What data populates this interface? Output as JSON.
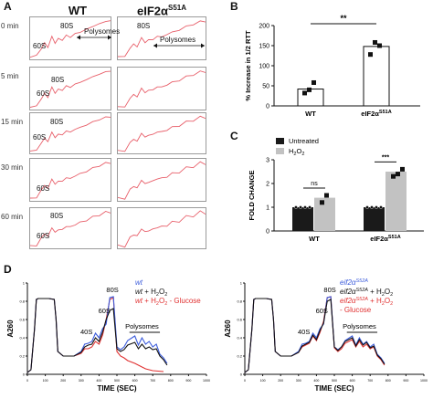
{
  "panel_a": {
    "letter": "A",
    "col_wt": "WT",
    "col_mut_main": "eIF2α",
    "col_mut_sup": "S51A",
    "times": [
      "0 min",
      "5 min",
      "15 min",
      "30 min",
      "60 min"
    ],
    "label_60s": "60S",
    "label_80s": "80S",
    "label_polysomes": "Polysomes",
    "trace_color": "#e8606b"
  },
  "panel_b": {
    "letter": "B",
    "sig": "**",
    "chart_data": {
      "type": "bar",
      "categories": [
        "WT",
        "eIF2αS51A"
      ],
      "category_main": [
        "WT",
        "eIF2α"
      ],
      "category_sup": [
        "",
        "S51A"
      ],
      "values": [
        42,
        148
      ],
      "points": [
        [
          32,
          40,
          58
        ],
        [
          128,
          158,
          150
        ]
      ],
      "ylabel": "% Increase in 1/2 RTT",
      "ylim": [
        0,
        200
      ],
      "yticks": [
        0,
        50,
        100,
        150,
        200
      ]
    }
  },
  "panel_c": {
    "letter": "C",
    "chart_data": {
      "type": "bar",
      "categories": [
        "WT",
        "eIF2αS51A"
      ],
      "category_main": [
        "WT",
        "eIF2α"
      ],
      "category_sup": [
        "",
        "S51A"
      ],
      "series": [
        {
          "name": "Untreated",
          "values": [
            1.0,
            1.0
          ],
          "color": "#1a1a1a"
        },
        {
          "name": "H2O2",
          "name_main": "H",
          "name_sub1": "2",
          "name_mid": "O",
          "name_sub2": "2",
          "values": [
            1.4,
            2.5
          ],
          "color": "#c2c2c2"
        }
      ],
      "points_h2o2": [
        [
          1.2,
          1.5
        ],
        [
          2.3,
          2.4,
          2.6
        ]
      ],
      "sig": [
        "ns",
        "***"
      ],
      "ylabel": "FOLD CHANGE",
      "ylim": [
        0,
        3
      ],
      "yticks": [
        0,
        1,
        2,
        3
      ]
    }
  },
  "panel_d": {
    "letter": "D",
    "chart_data": [
      {
        "type": "line",
        "xlabel": "TIME (SEC)",
        "ylabel": "A260",
        "xlim": [
          0,
          1000
        ],
        "ylim": [
          0,
          1.0
        ],
        "xticks": [
          0,
          100,
          200,
          300,
          400,
          500,
          600,
          700,
          800,
          900,
          1000
        ],
        "yticks": [
          0,
          0.2,
          0.4,
          0.6,
          0.8,
          1.0
        ],
        "peak_labels": [
          "40S",
          "60S",
          "80S",
          "Polysomes"
        ],
        "series": [
          {
            "name": "wt",
            "color": "#3b5bdb",
            "x": [
              0,
              20,
              40,
              50,
              60,
              120,
              150,
              160,
              170,
              200,
              260,
              300,
              320,
              340,
              360,
              380,
              400,
              420,
              440,
              460,
              480,
              500,
              520,
              540,
              560,
              600,
              620,
              640,
              660,
              680,
              700,
              720,
              740,
              760,
              780
            ],
            "y": [
              0.02,
              0.05,
              0.5,
              0.82,
              0.83,
              0.83,
              0.82,
              0.6,
              0.25,
              0.2,
              0.2,
              0.25,
              0.33,
              0.34,
              0.36,
              0.45,
              0.4,
              0.5,
              0.55,
              0.84,
              0.85,
              0.3,
              0.27,
              0.3,
              0.37,
              0.42,
              0.32,
              0.4,
              0.33,
              0.36,
              0.3,
              0.33,
              0.22,
              0.18,
              0.12
            ]
          },
          {
            "name": "wt + H2O2",
            "name_main": "wt",
            "name_rest": " + H",
            "color": "#111111",
            "x": [
              0,
              20,
              40,
              50,
              60,
              120,
              150,
              160,
              170,
              200,
              260,
              300,
              320,
              340,
              360,
              380,
              400,
              420,
              440,
              460,
              480,
              500,
              520,
              540,
              560,
              600,
              620,
              640,
              660,
              680,
              700,
              720,
              740,
              760,
              780
            ],
            "y": [
              0.02,
              0.05,
              0.5,
              0.82,
              0.83,
              0.83,
              0.82,
              0.6,
              0.25,
              0.2,
              0.2,
              0.24,
              0.3,
              0.32,
              0.33,
              0.4,
              0.36,
              0.46,
              0.6,
              0.7,
              0.72,
              0.28,
              0.25,
              0.27,
              0.32,
              0.35,
              0.28,
              0.33,
              0.28,
              0.3,
              0.27,
              0.28,
              0.2,
              0.16,
              0.1
            ]
          },
          {
            "name": "wt + H2O2 - Glucose",
            "name_main": "wt",
            "name_rest": " + H",
            "name_tail": " - Glucose",
            "color": "#e03131",
            "x": [
              0,
              20,
              40,
              50,
              60,
              120,
              150,
              160,
              170,
              200,
              260,
              300,
              320,
              340,
              360,
              380,
              400,
              420,
              440,
              460,
              480,
              500,
              520,
              540,
              560,
              600,
              620,
              640,
              660,
              700,
              760
            ],
            "y": [
              0.02,
              0.05,
              0.5,
              0.82,
              0.83,
              0.83,
              0.82,
              0.6,
              0.25,
              0.2,
              0.2,
              0.23,
              0.28,
              0.28,
              0.3,
              0.36,
              0.33,
              0.43,
              0.6,
              0.82,
              0.84,
              0.25,
              0.2,
              0.18,
              0.15,
              0.12,
              0.1,
              0.08,
              0.06,
              0.04,
              0.03
            ]
          }
        ]
      },
      {
        "type": "line",
        "xlabel": "TIME (SEC)",
        "ylabel": "A260",
        "xlim": [
          0,
          1000
        ],
        "ylim": [
          0,
          1.0
        ],
        "xticks": [
          0,
          100,
          200,
          300,
          400,
          500,
          600,
          700,
          800,
          900,
          1000
        ],
        "yticks": [
          0,
          0.2,
          0.4,
          0.6,
          0.8,
          1.0
        ],
        "peak_labels": [
          "40S",
          "60S",
          "80S",
          "Polysomes"
        ],
        "series": [
          {
            "name": "eif2αS52A",
            "name_main": "eif2α",
            "name_sup": "S52A",
            "color": "#3b5bdb",
            "x": [
              0,
              20,
              40,
              50,
              60,
              120,
              150,
              160,
              170,
              200,
              260,
              300,
              320,
              340,
              360,
              380,
              400,
              420,
              440,
              460,
              480,
              500,
              520,
              540,
              560,
              600,
              620,
              640,
              660,
              680,
              700,
              720,
              740,
              760,
              780
            ],
            "y": [
              0.02,
              0.05,
              0.5,
              0.82,
              0.83,
              0.83,
              0.82,
              0.6,
              0.25,
              0.2,
              0.2,
              0.25,
              0.33,
              0.34,
              0.36,
              0.45,
              0.4,
              0.5,
              0.55,
              0.84,
              0.85,
              0.3,
              0.27,
              0.3,
              0.37,
              0.42,
              0.32,
              0.4,
              0.33,
              0.36,
              0.3,
              0.33,
              0.22,
              0.18,
              0.12
            ]
          },
          {
            "name": "eif2αS52A + H2O2",
            "name_main": "eif2α",
            "name_sup": "S52A",
            "name_rest": " + H",
            "color": "#111111",
            "x": [
              0,
              20,
              40,
              50,
              60,
              120,
              150,
              160,
              170,
              200,
              260,
              300,
              320,
              340,
              360,
              380,
              400,
              420,
              440,
              460,
              480,
              500,
              520,
              540,
              560,
              600,
              620,
              640,
              660,
              680,
              700,
              720,
              740,
              760,
              780
            ],
            "y": [
              0.02,
              0.05,
              0.5,
              0.82,
              0.83,
              0.83,
              0.82,
              0.6,
              0.25,
              0.2,
              0.2,
              0.24,
              0.31,
              0.33,
              0.35,
              0.43,
              0.38,
              0.48,
              0.56,
              0.8,
              0.82,
              0.3,
              0.26,
              0.3,
              0.36,
              0.4,
              0.31,
              0.38,
              0.32,
              0.35,
              0.29,
              0.31,
              0.21,
              0.17,
              0.11
            ]
          },
          {
            "name": "eif2αS52A + H2O2 - Glucose",
            "name_main": "eif2α",
            "name_sup": "S52A",
            "name_rest": " + H",
            "name_tail": "- Glucose",
            "color": "#e03131",
            "x": [
              0,
              20,
              40,
              50,
              60,
              120,
              150,
              160,
              170,
              200,
              260,
              300,
              320,
              340,
              360,
              380,
              400,
              420,
              440,
              460,
              480,
              500,
              520,
              540,
              560,
              600,
              620,
              640,
              660,
              680,
              700,
              720,
              740,
              760,
              780
            ],
            "y": [
              0.02,
              0.05,
              0.5,
              0.82,
              0.83,
              0.83,
              0.82,
              0.6,
              0.25,
              0.2,
              0.2,
              0.24,
              0.3,
              0.32,
              0.34,
              0.42,
              0.37,
              0.46,
              0.58,
              0.84,
              0.85,
              0.29,
              0.25,
              0.28,
              0.34,
              0.38,
              0.3,
              0.36,
              0.3,
              0.33,
              0.28,
              0.3,
              0.2,
              0.16,
              0.1
            ]
          }
        ]
      }
    ]
  }
}
